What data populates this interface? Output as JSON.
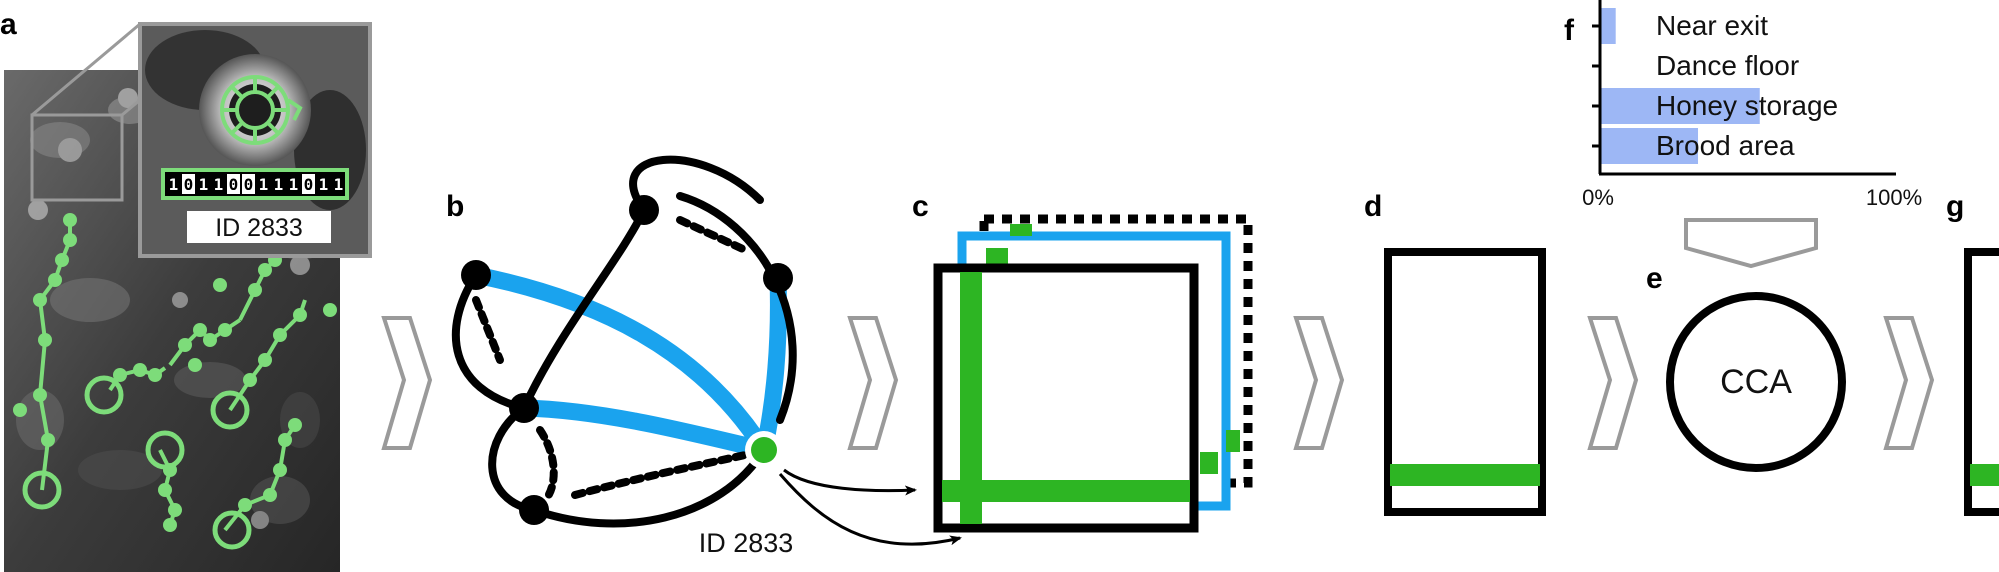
{
  "colors": {
    "green": "#2DB523",
    "light_green": "#7DDC7A",
    "blue": "#1AA3EE",
    "bar_blue": "#9DB7F5",
    "gray_arrow": "#999999",
    "photo_dark": "#3a3a3a"
  },
  "panel_labels": {
    "a": "a",
    "b": "b",
    "c": "c",
    "d": "d",
    "e": "e",
    "f": "f",
    "g": "g"
  },
  "panel_a": {
    "bit_code": [
      "1",
      "0",
      "1",
      "1",
      "0",
      "0",
      "1",
      "1",
      "1",
      "0",
      "1",
      "1"
    ],
    "tag_id": "ID 2833"
  },
  "panel_b": {
    "node_label": "ID 2833"
  },
  "panel_e": {
    "label": "CCA"
  },
  "chart_data": {
    "type": "bar",
    "orientation": "horizontal",
    "categories": [
      "Near exit",
      "Dance floor",
      "Honey storage",
      "Brood area"
    ],
    "values": [
      5,
      0,
      54,
      33
    ],
    "xlim": [
      0,
      100
    ],
    "xtick_labels": [
      "0%",
      "100%"
    ],
    "title": "",
    "xlabel": "",
    "ylabel": ""
  }
}
